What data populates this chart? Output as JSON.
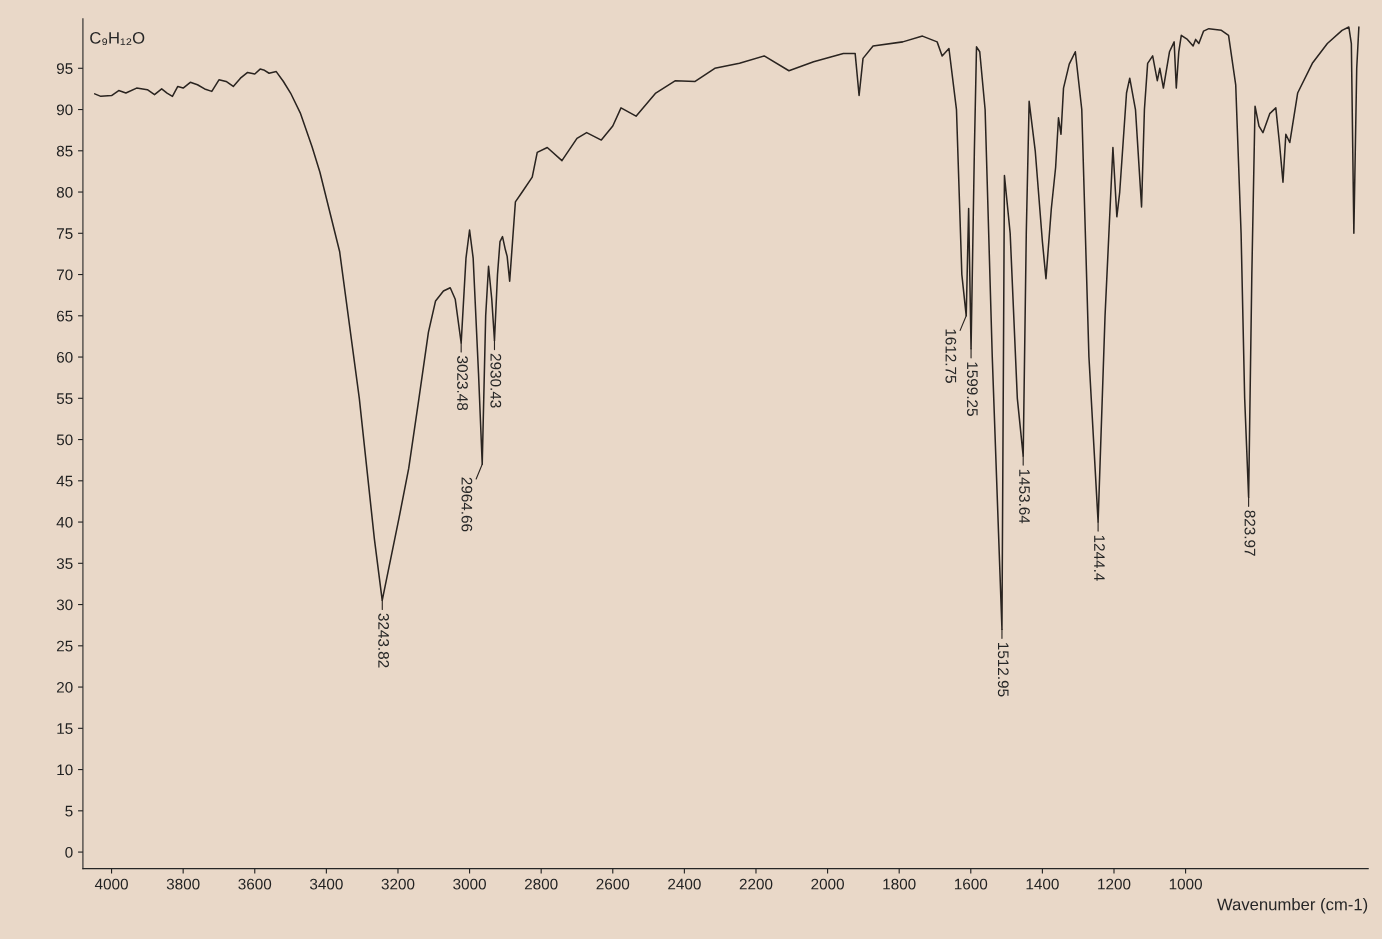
{
  "chart_data": {
    "type": "line",
    "title": "C₉H₁₂O",
    "xlabel": "Wavenumber (cm-1)",
    "xlim": [
      4080,
      490
    ],
    "xticks": [
      4000,
      3800,
      3600,
      3400,
      3200,
      3000,
      2800,
      2600,
      2400,
      2200,
      2000,
      1800,
      1600,
      1400,
      1200,
      1000
    ],
    "ylim": [
      -2,
      101
    ],
    "yticks": [
      0,
      5,
      10,
      15,
      20,
      25,
      30,
      35,
      40,
      45,
      50,
      55,
      60,
      65,
      70,
      75,
      80,
      85,
      90,
      95
    ],
    "grid": false,
    "legend": false,
    "marker": "none",
    "line_style": "solid",
    "annotations": [
      {
        "text": "3243.82",
        "x": 3243.82,
        "y": 30.5
      },
      {
        "text": "3023.48",
        "x": 3023.48,
        "y": 61.7
      },
      {
        "text": "2964.66",
        "x": 2964.66,
        "y": 47
      },
      {
        "text": "2930.43",
        "x": 2930.43,
        "y": 62
      },
      {
        "text": "1612.75",
        "x": 1612.75,
        "y": 65
      },
      {
        "text": "1599.25",
        "x": 1599.25,
        "y": 61
      },
      {
        "text": "1512.95",
        "x": 1512.95,
        "y": 27
      },
      {
        "text": "1453.64",
        "x": 1453.64,
        "y": 48
      },
      {
        "text": "1244.4",
        "x": 1244.4,
        "y": 40
      },
      {
        "text": "823.97",
        "x": 823.97,
        "y": 43
      }
    ],
    "series": [
      {
        "color": "#2a2420",
        "x": [
          4047,
          4030,
          4000,
          3980,
          3960,
          3930,
          3900,
          3880,
          3860,
          3845,
          3830,
          3815,
          3800,
          3780,
          3760,
          3740,
          3720,
          3700,
          3680,
          3660,
          3640,
          3620,
          3600,
          3585,
          3575,
          3560,
          3540,
          3520,
          3500,
          3473,
          3440,
          3418,
          3363,
          3308,
          3266,
          3244,
          3197,
          3170,
          3142,
          3115,
          3095,
          3073,
          3054,
          3040,
          3023.48,
          3010,
          3000,
          2990,
          2975,
          2964.66,
          2955,
          2947,
          2938,
          2930.43,
          2922,
          2915,
          2908,
          2900,
          2895,
          2888,
          2880,
          2872,
          2853,
          2825,
          2811,
          2783,
          2742,
          2700,
          2673,
          2632,
          2600,
          2577,
          2535,
          2480,
          2425,
          2370,
          2315,
          2246,
          2177,
          2108,
          2039,
          1956,
          1923,
          1912,
          1901,
          1873,
          1790,
          1735,
          1694,
          1680,
          1661,
          1640,
          1625,
          1612.75,
          1606,
          1599.25,
          1590,
          1584,
          1575,
          1560,
          1540,
          1512.95,
          1506,
          1490,
          1470,
          1453.64,
          1445,
          1437,
          1420,
          1400,
          1390,
          1375,
          1363,
          1355,
          1348,
          1341,
          1325,
          1308,
          1290,
          1270,
          1244.4,
          1225,
          1203,
          1192,
          1184,
          1165,
          1156,
          1140,
          1123,
          1115,
          1106,
          1092,
          1079,
          1072,
          1062,
          1045,
          1032,
          1026,
          1019,
          1012,
          995,
          979,
          972,
          963,
          950,
          935,
          900,
          880,
          860,
          845,
          835,
          823.97,
          815,
          806,
          795,
          784,
          765,
          748,
          738,
          728,
          720,
          709,
          687,
          646,
          604,
          563,
          544,
          537,
          530,
          522,
          516
        ],
        "values": [
          91.9,
          91.6,
          91.7,
          92.3,
          92.0,
          92.6,
          92.4,
          91.8,
          92.5,
          92.0,
          91.6,
          92.8,
          92.6,
          93.3,
          93.0,
          92.5,
          92.2,
          93.6,
          93.4,
          92.8,
          93.8,
          94.5,
          94.3,
          94.9,
          94.8,
          94.4,
          94.6,
          93.4,
          92.0,
          89.6,
          85.5,
          82.4,
          72.8,
          55,
          38,
          30.5,
          40.5,
          46.5,
          54.8,
          63,
          66.8,
          68,
          68.4,
          67,
          61.7,
          72,
          75.4,
          72,
          58,
          47,
          65,
          71,
          67,
          62,
          70,
          74,
          74.6,
          73,
          72.2,
          69.2,
          74,
          78.8,
          80,
          81.8,
          84.8,
          85.4,
          83.8,
          86.5,
          87.2,
          86.3,
          88,
          90.2,
          89.2,
          92,
          93.5,
          93.4,
          95,
          95.6,
          96.5,
          94.7,
          95.8,
          96.8,
          96.8,
          91.7,
          96.2,
          97.7,
          98.2,
          98.9,
          98.2,
          96.5,
          97.4,
          90,
          70,
          65,
          78,
          61,
          85,
          97.6,
          97,
          90,
          60,
          27,
          82,
          75,
          55,
          48,
          75,
          91,
          85,
          74,
          69.5,
          78,
          83,
          89,
          87,
          92.6,
          95.5,
          97,
          90,
          60,
          40,
          65,
          85.4,
          77,
          80,
          92,
          93.8,
          90,
          78.2,
          90,
          95.6,
          96.5,
          93.5,
          95,
          92.6,
          97,
          98.2,
          92.6,
          97,
          99,
          98.5,
          97.7,
          98.5,
          98,
          99.5,
          99.8,
          99.6,
          99,
          93,
          75,
          55,
          43,
          70,
          90.4,
          88,
          87.2,
          89.5,
          90.2,
          86,
          81.2,
          87,
          86,
          92,
          95.6,
          98,
          99.6,
          100,
          98,
          75,
          95,
          100
        ]
      }
    ]
  }
}
